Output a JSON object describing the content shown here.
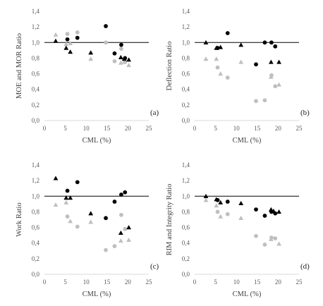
{
  "colors": {
    "black_series": "#000000",
    "grey_series": "#bfbfbf",
    "reference_line": "#000000",
    "axis_line": "#d9d9d9",
    "text": "#595959"
  },
  "chart_data": [
    {
      "type": "scatter",
      "panel_label": "(a)",
      "xlabel": "CML (%)",
      "ylabel": "MOE and MOR Ratio",
      "xlim": [
        0,
        25
      ],
      "ylim": [
        0,
        1.4
      ],
      "xticks": [
        "0",
        "5",
        "10",
        "15",
        "20",
        "25"
      ],
      "yticks": [
        "0,0",
        "0,2",
        "0,4",
        "0,6",
        "0,8",
        "1,0",
        "1,2",
        "1,4"
      ],
      "reference_line_y": 1.0,
      "grid": false,
      "series": [
        {
          "marker": "triangle",
          "color": "black",
          "points": [
            [
              2.7,
              1.02
            ],
            [
              5.2,
              0.93
            ],
            [
              6.2,
              0.88
            ],
            [
              11.1,
              0.87
            ],
            [
              18.3,
              0.81
            ],
            [
              19.1,
              0.79
            ],
            [
              20.2,
              0.78
            ]
          ]
        },
        {
          "marker": "circle",
          "color": "black",
          "points": [
            [
              5.5,
              1.04
            ],
            [
              7.9,
              1.06
            ],
            [
              14.7,
              1.21
            ],
            [
              16.8,
              0.86
            ],
            [
              18.4,
              0.97
            ],
            [
              19.3,
              0.8
            ]
          ]
        },
        {
          "marker": "triangle",
          "color": "grey",
          "points": [
            [
              2.7,
              1.1
            ],
            [
              5.2,
              0.98
            ],
            [
              6.2,
              0.99
            ],
            [
              11.1,
              0.79
            ],
            [
              18.3,
              0.74
            ],
            [
              19.1,
              0.75
            ],
            [
              20.2,
              0.71
            ]
          ]
        },
        {
          "marker": "circle",
          "color": "grey",
          "points": [
            [
              5.5,
              1.11
            ],
            [
              7.9,
              1.13
            ],
            [
              14.7,
              1.0
            ],
            [
              16.8,
              0.76
            ],
            [
              18.4,
              0.92
            ],
            [
              19.3,
              0.75
            ]
          ]
        }
      ]
    },
    {
      "type": "scatter",
      "panel_label": "(b)",
      "xlabel": "CML (%)",
      "ylabel": "Deflection Ratio",
      "xlim": [
        0,
        25
      ],
      "ylim": [
        0,
        1.4
      ],
      "xticks": [
        "0",
        "5",
        "10",
        "15",
        "20",
        "25"
      ],
      "yticks": [
        "0,0",
        "0,2",
        "0,4",
        "0,6",
        "0,8",
        "1,0",
        "1,2",
        "1,4"
      ],
      "reference_line_y": 1.0,
      "grid": false,
      "series": [
        {
          "marker": "triangle",
          "color": "black",
          "points": [
            [
              2.7,
              1.0
            ],
            [
              5.2,
              0.93
            ],
            [
              6.2,
              0.94
            ],
            [
              11.1,
              0.97
            ],
            [
              18.3,
              0.75
            ],
            [
              20.2,
              0.75
            ]
          ]
        },
        {
          "marker": "circle",
          "color": "black",
          "points": [
            [
              5.5,
              0.93
            ],
            [
              7.9,
              1.12
            ],
            [
              14.7,
              0.72
            ],
            [
              16.8,
              1.0
            ],
            [
              18.4,
              1.0
            ],
            [
              19.3,
              0.95
            ]
          ]
        },
        {
          "marker": "triangle",
          "color": "grey",
          "points": [
            [
              2.7,
              0.79
            ],
            [
              5.2,
              0.79
            ],
            [
              6.2,
              0.6
            ],
            [
              11.1,
              0.75
            ],
            [
              18.3,
              0.56
            ],
            [
              20.2,
              0.46
            ]
          ]
        },
        {
          "marker": "circle",
          "color": "grey",
          "points": [
            [
              5.5,
              0.68
            ],
            [
              7.9,
              0.55
            ],
            [
              14.7,
              0.25
            ],
            [
              16.8,
              0.26
            ],
            [
              18.4,
              0.58
            ],
            [
              19.3,
              0.44
            ]
          ]
        }
      ]
    },
    {
      "type": "scatter",
      "panel_label": "(c)",
      "xlabel": "CML (%)",
      "ylabel": "Work Ratio",
      "xlim": [
        0,
        25
      ],
      "ylim": [
        0,
        1.4
      ],
      "xticks": [
        "0",
        "5",
        "10",
        "15",
        "20",
        "25"
      ],
      "yticks": [
        "0,0",
        "0,2",
        "0,4",
        "0,6",
        "0,8",
        "1,0",
        "1,2",
        "1,4"
      ],
      "reference_line_y": 1.0,
      "grid": false,
      "series": [
        {
          "marker": "triangle",
          "color": "black",
          "points": [
            [
              2.7,
              1.23
            ],
            [
              5.2,
              0.98
            ],
            [
              6.2,
              0.98
            ],
            [
              11.1,
              0.78
            ],
            [
              18.3,
              0.53
            ],
            [
              20.2,
              0.6
            ]
          ]
        },
        {
          "marker": "circle",
          "color": "black",
          "points": [
            [
              5.5,
              1.07
            ],
            [
              7.9,
              1.18
            ],
            [
              14.7,
              0.72
            ],
            [
              16.8,
              0.93
            ],
            [
              18.4,
              1.02
            ],
            [
              19.3,
              1.05
            ]
          ]
        },
        {
          "marker": "triangle",
          "color": "grey",
          "points": [
            [
              2.7,
              0.89
            ],
            [
              5.2,
              0.92
            ],
            [
              6.2,
              0.68
            ],
            [
              11.1,
              0.67
            ],
            [
              18.3,
              0.43
            ],
            [
              20.2,
              0.44
            ]
          ]
        },
        {
          "marker": "circle",
          "color": "grey",
          "points": [
            [
              5.5,
              0.74
            ],
            [
              7.9,
              0.61
            ],
            [
              14.7,
              0.31
            ],
            [
              16.8,
              0.36
            ],
            [
              18.4,
              0.76
            ],
            [
              19.3,
              0.58
            ]
          ]
        }
      ]
    },
    {
      "type": "scatter",
      "panel_label": "(d)",
      "xlabel": "CML (%)",
      "ylabel": "RIM and Integrity Ratio",
      "xlim": [
        0,
        25
      ],
      "ylim": [
        0,
        1.4
      ],
      "xticks": [
        "0",
        "5",
        "10",
        "15",
        "20",
        "25"
      ],
      "yticks": [
        "0,0",
        "0,2",
        "0,4",
        "0,6",
        "0,8",
        "1,0",
        "1,2",
        "1,4"
      ],
      "reference_line_y": 1.0,
      "grid": false,
      "series": [
        {
          "marker": "triangle",
          "color": "black",
          "points": [
            [
              2.7,
              1.0
            ],
            [
              5.2,
              0.96
            ],
            [
              6.2,
              0.92
            ],
            [
              11.1,
              0.91
            ],
            [
              18.3,
              0.83
            ],
            [
              18.9,
              0.81
            ],
            [
              20.2,
              0.8
            ]
          ]
        },
        {
          "marker": "circle",
          "color": "black",
          "points": [
            [
              5.5,
              0.95
            ],
            [
              7.9,
              0.93
            ],
            [
              14.7,
              0.83
            ],
            [
              16.8,
              0.75
            ],
            [
              18.4,
              0.8
            ],
            [
              19.3,
              0.78
            ]
          ]
        },
        {
          "marker": "triangle",
          "color": "grey",
          "points": [
            [
              2.7,
              0.95
            ],
            [
              5.2,
              0.88
            ],
            [
              6.2,
              0.74
            ],
            [
              11.1,
              0.72
            ],
            [
              18.3,
              0.45
            ],
            [
              20.2,
              0.39
            ]
          ]
        },
        {
          "marker": "circle",
          "color": "grey",
          "points": [
            [
              5.5,
              0.8
            ],
            [
              7.9,
              0.77
            ],
            [
              14.7,
              0.49
            ],
            [
              16.8,
              0.38
            ],
            [
              18.4,
              0.47
            ],
            [
              19.3,
              0.46
            ]
          ]
        }
      ]
    }
  ]
}
